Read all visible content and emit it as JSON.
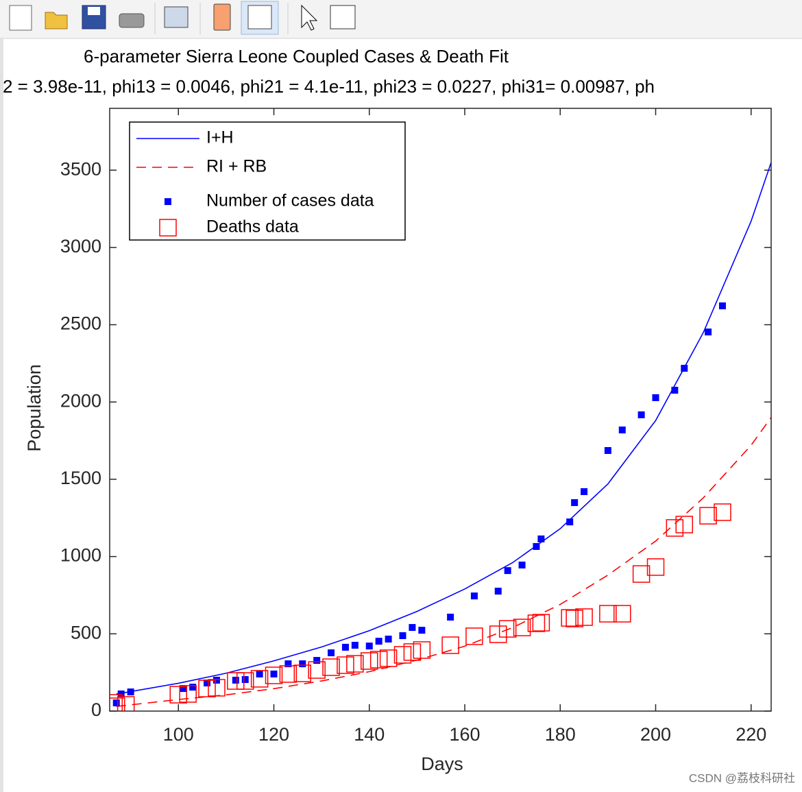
{
  "chart_data": {
    "type": "line",
    "title": "6-parameter Sierra Leone Coupled Cases & Death Fit",
    "subtitle": "2 = 3.98e-11, phi13 = 0.0046, phi21 = 4.1e-11, phi23 = 0.0227, phi31= 0.00987, ph",
    "xlabel": "Days",
    "ylabel": "Population",
    "xlim": [
      85.6,
      224.2
    ],
    "ylim": [
      0,
      3900
    ],
    "xticks": [
      100,
      120,
      140,
      160,
      180,
      200,
      220
    ],
    "yticks": [
      0,
      500,
      1000,
      1500,
      2000,
      2500,
      3000,
      3500
    ],
    "legend": "upper left",
    "watermark": "CSDN @荔枝科研社",
    "series": [
      {
        "name": "I+H",
        "type": "line",
        "style": "solid",
        "color": "#0000ff",
        "x": [
          87,
          100,
          110,
          120,
          130,
          140,
          150,
          160,
          170,
          180,
          190,
          200,
          210,
          220,
          224.2
        ],
        "values": [
          110,
          180,
          245,
          325,
          415,
          520,
          645,
          790,
          960,
          1180,
          1470,
          1880,
          2450,
          3170,
          3550
        ]
      },
      {
        "name": "RI + RB",
        "type": "line",
        "style": "dashed",
        "color": "#ff0000",
        "x": [
          87,
          100,
          110,
          120,
          130,
          140,
          150,
          160,
          170,
          180,
          190,
          200,
          210,
          220,
          224.2
        ],
        "values": [
          30,
          75,
          105,
          145,
          195,
          255,
          330,
          420,
          540,
          690,
          880,
          1100,
          1380,
          1720,
          1900
        ]
      },
      {
        "name": "Number of cases data",
        "type": "scatter",
        "marker": "filled-square",
        "color": "#0000ff",
        "x": [
          87,
          88,
          90,
          101,
          103,
          106,
          108,
          112,
          114,
          117,
          120,
          123,
          126,
          129,
          132,
          135,
          137,
          140,
          142,
          144,
          147,
          149,
          151,
          157,
          162,
          167,
          169,
          172,
          175,
          176,
          182,
          183,
          185,
          190,
          193,
          197,
          200,
          204,
          206,
          211,
          214
        ],
        "values": [
          53,
          111,
          124,
          146,
          155,
          182,
          200,
          200,
          204,
          240,
          240,
          306,
          306,
          328,
          377,
          413,
          426,
          421,
          452,
          466,
          488,
          541,
          523,
          608,
          745,
          776,
          909,
          945,
          1065,
          1114,
          1224,
          1349,
          1420,
          1686,
          1819,
          1917,
          2028,
          2076,
          2218,
          2453,
          2622
        ]
      },
      {
        "name": "Deaths data",
        "type": "scatter",
        "marker": "open-square",
        "color": "#ff0000",
        "x": [
          86.5,
          87,
          89,
          100,
          102,
          106,
          108,
          112,
          114,
          117,
          120,
          123,
          126,
          129,
          132,
          135,
          137,
          140,
          142,
          144,
          147,
          149,
          151,
          157,
          162,
          167,
          169,
          172,
          175,
          176,
          182,
          183,
          185,
          190,
          193,
          197,
          200,
          204,
          206,
          211,
          214
        ],
        "values": [
          53,
          31,
          40,
          106,
          111,
          146,
          151,
          195,
          195,
          209,
          231,
          240,
          244,
          266,
          284,
          297,
          306,
          324,
          333,
          342,
          364,
          382,
          395,
          426,
          484,
          497,
          532,
          541,
          568,
          572,
          603,
          599,
          608,
          630,
          630,
          887,
          932,
          1185,
          1207,
          1264,
          1287
        ]
      }
    ]
  }
}
